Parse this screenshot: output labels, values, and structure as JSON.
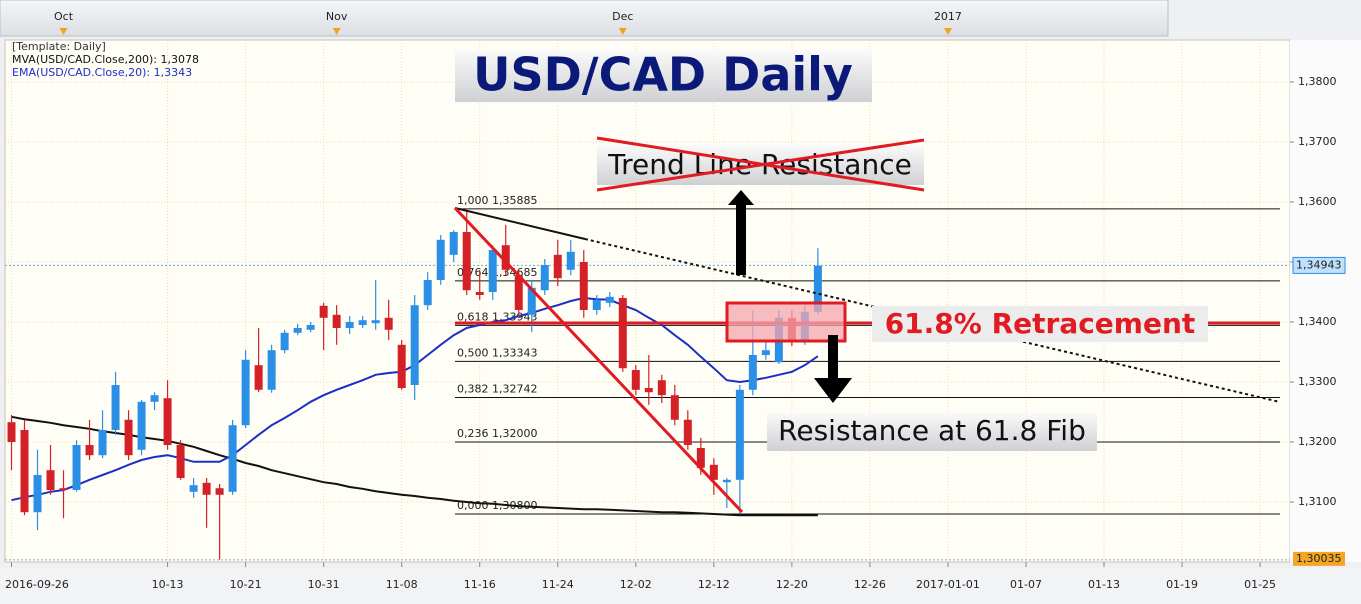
{
  "chart_data": {
    "type": "candlestick",
    "title": "USD/CAD Daily",
    "template_label": "[Template: Daily]",
    "x": [
      0,
      1,
      2,
      3,
      4,
      5,
      6,
      7,
      8,
      9,
      10,
      11,
      12,
      13,
      14,
      15,
      16,
      17,
      18,
      19,
      20,
      21,
      22,
      23,
      24,
      25,
      26,
      27,
      28,
      29,
      30,
      31,
      32,
      33,
      34,
      35,
      36,
      37,
      38,
      39,
      40,
      41,
      42,
      43,
      44,
      45,
      46,
      47,
      48,
      49,
      50,
      51,
      52,
      53,
      54,
      55,
      56,
      57,
      58,
      59,
      60,
      61,
      62
    ],
    "open": [
      1.3233,
      1.322,
      1.3083,
      1.3153,
      1.3123,
      1.312,
      1.3195,
      1.3178,
      1.322,
      1.3237,
      1.3187,
      1.3267,
      1.3273,
      1.3195,
      1.3117,
      1.3132,
      1.3123,
      1.3117,
      1.3228,
      1.3328,
      1.3287,
      1.3353,
      1.3382,
      1.3387,
      1.3427,
      1.3412,
      1.339,
      1.3395,
      1.3398,
      1.3407,
      1.3362,
      1.3295,
      1.3428,
      1.347,
      1.3512,
      1.355,
      1.345,
      1.345,
      1.3528,
      1.3478,
      1.3412,
      1.3453,
      1.3512,
      1.3487,
      1.35,
      1.342,
      1.3432,
      1.344,
      1.332,
      1.329,
      1.3303,
      1.3278,
      1.3237,
      1.319,
      1.3162,
      1.3133,
      1.3137,
      1.3287,
      1.3345,
      1.3333,
      1.3407,
      1.3367,
      1.3417
    ],
    "high": [
      1.3245,
      1.3237,
      1.3187,
      1.3195,
      1.3153,
      1.3203,
      1.3237,
      1.3253,
      1.3317,
      1.3253,
      1.327,
      1.3283,
      1.3303,
      1.3203,
      1.314,
      1.314,
      1.313,
      1.3237,
      1.3353,
      1.339,
      1.3362,
      1.3387,
      1.3397,
      1.34,
      1.3432,
      1.3428,
      1.341,
      1.341,
      1.347,
      1.3437,
      1.337,
      1.3445,
      1.3483,
      1.3545,
      1.3553,
      1.3589,
      1.3487,
      1.3528,
      1.3562,
      1.3487,
      1.347,
      1.3505,
      1.3537,
      1.3537,
      1.352,
      1.3445,
      1.345,
      1.3445,
      1.3328,
      1.3345,
      1.3312,
      1.3295,
      1.3253,
      1.3207,
      1.3173,
      1.314,
      1.3295,
      1.342,
      1.337,
      1.342,
      1.342,
      1.3428,
      1.3523
    ],
    "low": [
      1.3153,
      1.3078,
      1.3053,
      1.3112,
      1.3073,
      1.3117,
      1.317,
      1.3173,
      1.3212,
      1.317,
      1.3178,
      1.3253,
      1.3187,
      1.3137,
      1.3107,
      1.3057,
      1.3004,
      1.3112,
      1.3223,
      1.3283,
      1.3282,
      1.3348,
      1.3378,
      1.3383,
      1.3353,
      1.3362,
      1.338,
      1.339,
      1.3387,
      1.337,
      1.3287,
      1.327,
      1.342,
      1.3462,
      1.35,
      1.3445,
      1.3437,
      1.3437,
      1.3478,
      1.3407,
      1.3383,
      1.3445,
      1.346,
      1.3478,
      1.3407,
      1.3412,
      1.3425,
      1.3317,
      1.3278,
      1.3262,
      1.3265,
      1.3228,
      1.3187,
      1.3145,
      1.3112,
      1.309,
      1.308,
      1.3278,
      1.3337,
      1.333,
      1.336,
      1.3362,
      1.3412
    ],
    "close": [
      1.32,
      1.3083,
      1.3145,
      1.312,
      1.312,
      1.3195,
      1.3178,
      1.322,
      1.3295,
      1.3178,
      1.3267,
      1.3278,
      1.3195,
      1.314,
      1.3128,
      1.3112,
      1.3112,
      1.3228,
      1.3337,
      1.3287,
      1.3353,
      1.3382,
      1.339,
      1.3395,
      1.3407,
      1.339,
      1.34,
      1.3403,
      1.3403,
      1.3387,
      1.329,
      1.3428,
      1.347,
      1.3537,
      1.355,
      1.3453,
      1.3445,
      1.352,
      1.3487,
      1.342,
      1.3457,
      1.3495,
      1.3473,
      1.3517,
      1.342,
      1.3437,
      1.3442,
      1.3323,
      1.3287,
      1.3283,
      1.3278,
      1.3237,
      1.3195,
      1.3157,
      1.3137,
      1.3137,
      1.3287,
      1.3345,
      1.3353,
      1.3407,
      1.337,
      1.3417,
      1.3494
    ],
    "up_color": "#2b8fe6",
    "down_color": "#d42027",
    "series": [
      {
        "name": "MVA(USD/CAD.Close,200): 1,3078",
        "color": "#111111",
        "values": [
          1.3242,
          1.3238,
          1.3235,
          1.3232,
          1.3228,
          1.3225,
          1.3222,
          1.3218,
          1.3215,
          1.3212,
          1.3208,
          1.3205,
          1.3202,
          1.3197,
          1.3192,
          1.3185,
          1.3178,
          1.3172,
          1.3165,
          1.316,
          1.3153,
          1.3148,
          1.3143,
          1.3138,
          1.3133,
          1.313,
          1.3125,
          1.3122,
          1.3118,
          1.3115,
          1.3112,
          1.311,
          1.3107,
          1.3105,
          1.3102,
          1.31,
          1.3098,
          1.3097,
          1.3095,
          1.3093,
          1.3092,
          1.3091,
          1.309,
          1.3089,
          1.3088,
          1.3088,
          1.3087,
          1.3086,
          1.3085,
          1.3084,
          1.3083,
          1.3083,
          1.3082,
          1.3081,
          1.308,
          1.3079,
          1.3078,
          1.3078,
          1.3078,
          1.3078,
          1.3078,
          1.3078,
          1.3078
        ]
      },
      {
        "name": "EMA(USD/CAD.Close,20): 1,3343",
        "color": "#1c2fc4",
        "values": [
          1.3103,
          1.3108,
          1.3112,
          1.3117,
          1.312,
          1.3128,
          1.3137,
          1.3145,
          1.3153,
          1.3162,
          1.317,
          1.3175,
          1.3178,
          1.3173,
          1.3167,
          1.3167,
          1.3167,
          1.3178,
          1.3195,
          1.3212,
          1.3228,
          1.324,
          1.3253,
          1.3267,
          1.3278,
          1.3287,
          1.3295,
          1.3303,
          1.3312,
          1.3315,
          1.3317,
          1.3328,
          1.3345,
          1.3362,
          1.3378,
          1.339,
          1.3395,
          1.34,
          1.3403,
          1.341,
          1.3415,
          1.3422,
          1.3428,
          1.3435,
          1.344,
          1.3438,
          1.3437,
          1.3428,
          1.342,
          1.3407,
          1.3395,
          1.3378,
          1.3362,
          1.3342,
          1.3323,
          1.3303,
          1.33,
          1.3303,
          1.3307,
          1.3312,
          1.3317,
          1.3328,
          1.3343
        ]
      }
    ],
    "xlim": [
      -0.5,
      98.3
    ],
    "xticks": [
      {
        "value": 0,
        "label": "2016-09-26"
      },
      {
        "value": 12,
        "label": "10-13"
      },
      {
        "value": 18,
        "label": "10-21"
      },
      {
        "value": 24,
        "label": "10-31"
      },
      {
        "value": 30,
        "label": "11-08"
      },
      {
        "value": 36,
        "label": "11-16"
      },
      {
        "value": 42,
        "label": "11-24"
      },
      {
        "value": 48,
        "label": "12-02"
      },
      {
        "value": 54,
        "label": "12-12"
      },
      {
        "value": 60,
        "label": "12-20"
      },
      {
        "value": 66,
        "label": "12-26"
      },
      {
        "value": 72,
        "label": "2017-01-01"
      },
      {
        "value": 78,
        "label": "01-07"
      },
      {
        "value": 84,
        "label": "01-13"
      },
      {
        "value": 90,
        "label": "01-19"
      },
      {
        "value": 96,
        "label": "01-25"
      }
    ],
    "x2ticks": [
      {
        "value": 4,
        "label": "Oct"
      },
      {
        "value": 25,
        "label": "Nov"
      },
      {
        "value": 47,
        "label": "Dec"
      },
      {
        "value": 72,
        "label": "2017"
      }
    ],
    "ylim": [
      1.3,
      1.387
    ],
    "yticks": [
      {
        "value": 1.31,
        "label": "1,3100"
      },
      {
        "value": 1.32,
        "label": "1,3200"
      },
      {
        "value": 1.33,
        "label": "1,3300"
      },
      {
        "value": 1.34,
        "label": "1,3400"
      },
      {
        "value": 1.35,
        "label": "1,3500"
      },
      {
        "value": 1.36,
        "label": "1,3600"
      },
      {
        "value": 1.37,
        "label": "1,3700"
      },
      {
        "value": 1.38,
        "label": "1,3800"
      }
    ],
    "grid": true,
    "fib_levels": [
      {
        "value": 1.35885,
        "label": "1,000 1,35885"
      },
      {
        "value": 1.34685,
        "label": "0,764 1,34685"
      },
      {
        "value": 1.33943,
        "label": "0,618 1,33943"
      },
      {
        "value": 1.33343,
        "label": "0,500 1,33343"
      },
      {
        "value": 1.32742,
        "label": "0,382 1,32742"
      },
      {
        "value": 1.32,
        "label": "0,236 1,32000"
      },
      {
        "value": 1.308,
        "label": "0,000 1,30800"
      }
    ],
    "last_price": {
      "value": 1.34943,
      "label": "1,34943"
    },
    "low_price": {
      "value": 1.30035,
      "label": "1,30035"
    },
    "annotations": [
      "Trend Line Resistance",
      "61.8% Retracement",
      "Resistance at 61.8 Fib"
    ]
  }
}
